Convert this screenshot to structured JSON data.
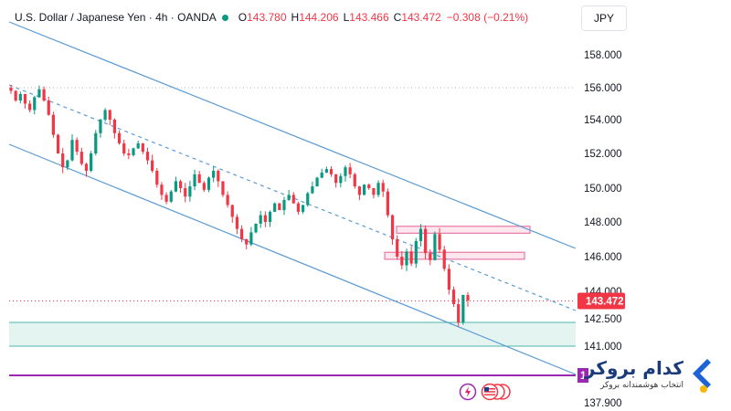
{
  "header": {
    "symbol": "U.S. Dollar / Japanese Yen · 4h · OANDA",
    "open_label": "O",
    "open": "143.780",
    "high_label": "H",
    "high": "144.206",
    "low_label": "L",
    "low": "143.466",
    "close_label": "C",
    "close": "143.472",
    "change": "−0.308 (−0.21%)"
  },
  "currency_button": "JPY",
  "current_price_tag": "143.472",
  "left_marker_label": "1",
  "brand": {
    "title": "کدام بروکر",
    "subtitle": "انتخاب هوشمندانه بروکر"
  },
  "colors": {
    "up": "#089981",
    "down": "#f23645",
    "channel": "#5b9bd5",
    "support_zone": "#e4f4f1",
    "support_line": "#4db6ac",
    "resistance_zone": "#fde7ef",
    "resistance_border": "#e879a6",
    "purple_line": "#9c27b0",
    "price_tag": "#f23645"
  },
  "chart_data": {
    "type": "candlestick",
    "instrument": "USDJPY",
    "timeframe": "4h",
    "y_axis_ticks": [
      "158.000",
      "156.000",
      "154.000",
      "152.000",
      "150.000",
      "148.000",
      "146.000",
      "144.000",
      "142.500",
      "141.000",
      "137.900"
    ],
    "ylim": [
      137.9,
      158.0
    ],
    "last_price": 143.472,
    "dotted_reference_level": 156.0,
    "resistance_zones": [
      [
        147.35,
        147.75
      ],
      [
        145.85,
        146.25
      ]
    ],
    "support_zone": [
      141.0,
      142.3
    ],
    "purple_level": 139.4,
    "close_path": [
      155.8,
      155.2,
      155.6,
      155.0,
      154.6,
      155.4,
      155.9,
      155.2,
      154.3,
      153.1,
      152.0,
      151.2,
      151.6,
      152.8,
      152.1,
      151.4,
      151.0,
      152.0,
      153.2,
      154.0,
      154.6,
      154.0,
      153.2,
      152.6,
      152.0,
      151.9,
      152.3,
      152.6,
      152.1,
      151.6,
      151.0,
      150.2,
      149.6,
      149.2,
      149.8,
      150.4,
      150.0,
      149.5,
      150.1,
      150.8,
      150.3,
      149.9,
      150.6,
      151.0,
      150.4,
      149.6,
      149.0,
      148.3,
      147.6,
      147.0,
      146.7,
      147.4,
      147.9,
      148.4,
      148.0,
      148.6,
      149.1,
      148.7,
      149.3,
      149.6,
      149.1,
      148.6,
      149.0,
      149.7,
      150.1,
      150.6,
      150.9,
      151.1,
      150.8,
      150.3,
      150.7,
      151.2,
      150.8,
      150.1,
      149.6,
      150.2,
      150.0,
      149.6,
      150.3,
      149.8,
      148.4,
      147.0,
      146.0,
      145.5,
      146.3,
      145.6,
      146.9,
      147.6,
      146.2,
      145.8,
      147.3,
      146.4,
      145.3,
      144.1,
      143.3,
      142.3,
      143.8,
      143.5
    ]
  }
}
